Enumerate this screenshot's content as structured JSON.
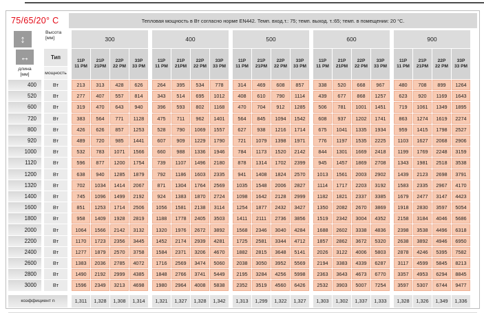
{
  "header": {
    "temp_label": "75/65/20° C",
    "title": "Тепловая мощность в Вт согласно норме EN442. Темп. вход.т.: 75; темп. выход. т.:65; темп. в помещении: 20 °С."
  },
  "colors": {
    "accent_red": "#e30613",
    "data_cell_bg": "#f8cab2",
    "data_cell_border": "#eeb094",
    "header_band_bg": "#d8d8d8",
    "icon_bg": "#9b9b9b"
  },
  "icons": {
    "height_icon": "up-down-arrows",
    "length_icon": "left-right-arrows"
  },
  "table": {
    "height_label": "Высота",
    "height_unit": "[мм]",
    "length_label": "длина",
    "length_unit": "[мм]",
    "type_label": "Тип",
    "power_label": "мощность",
    "unit": "Вт",
    "heights": [
      "300",
      "400",
      "500",
      "600",
      "900"
    ],
    "types": [
      {
        "line1": "11P",
        "line2": "11 PM"
      },
      {
        "line1": "21P",
        "line2": "21PM"
      },
      {
        "line1": "22P",
        "line2": "22 PM"
      },
      {
        "line1": "33P",
        "line2": "33 PM"
      }
    ],
    "rows": [
      {
        "len": "400",
        "v": [
          213,
          313,
          428,
          626,
          264,
          395,
          534,
          778,
          314,
          469,
          608,
          857,
          338,
          520,
          668,
          967,
          480,
          708,
          899,
          1264
        ]
      },
      {
        "len": "520",
        "v": [
          277,
          407,
          557,
          814,
          343,
          514,
          695,
          1012,
          408,
          610,
          790,
          1114,
          439,
          677,
          868,
          1257,
          623,
          920,
          1169,
          1643
        ]
      },
      {
        "len": "600",
        "v": [
          319,
          470,
          643,
          940,
          396,
          593,
          802,
          1168,
          470,
          704,
          912,
          1285,
          506,
          781,
          1001,
          1451,
          719,
          1061,
          1349,
          1895
        ]
      },
      {
        "len": "720",
        "v": [
          383,
          564,
          771,
          1128,
          475,
          711,
          962,
          1401,
          564,
          845,
          1094,
          1542,
          608,
          937,
          1202,
          1741,
          863,
          1274,
          1619,
          2274
        ]
      },
      {
        "len": "800",
        "v": [
          426,
          626,
          857,
          1253,
          528,
          790,
          1069,
          1557,
          627,
          938,
          1216,
          1714,
          675,
          1041,
          1335,
          1934,
          959,
          1415,
          1798,
          2527
        ]
      },
      {
        "len": "920",
        "v": [
          489,
          720,
          985,
          1441,
          607,
          909,
          1229,
          1790,
          721,
          1079,
          1398,
          1971,
          776,
          1197,
          1535,
          2225,
          1103,
          1627,
          2068,
          2906
        ]
      },
      {
        "len": "1000",
        "v": [
          532,
          783,
          1071,
          1566,
          660,
          988,
          1336,
          1946,
          784,
          1173,
          1520,
          2142,
          844,
          1301,
          1669,
          2418,
          1199,
          1769,
          2248,
          3159
        ]
      },
      {
        "len": "1120",
        "v": [
          596,
          877,
          1200,
          1754,
          739,
          1107,
          1496,
          2180,
          878,
          1314,
          1702,
          2399,
          945,
          1457,
          1869,
          2708,
          1343,
          1981,
          2518,
          3538
        ]
      },
      {
        "len": "1200",
        "v": [
          638,
          940,
          1285,
          1879,
          792,
          1186,
          1603,
          2335,
          941,
          1408,
          1824,
          2570,
          1013,
          1561,
          2003,
          2902,
          1439,
          2123,
          2698,
          3791
        ]
      },
      {
        "len": "1320",
        "v": [
          702,
          1034,
          1414,
          2067,
          871,
          1304,
          1764,
          2569,
          1035,
          1548,
          2006,
          2827,
          1114,
          1717,
          2203,
          3192,
          1583,
          2335,
          2967,
          4170
        ]
      },
      {
        "len": "1400",
        "v": [
          745,
          1096,
          1499,
          2192,
          924,
          1383,
          1870,
          2724,
          1098,
          1642,
          2128,
          2999,
          1182,
          1821,
          2337,
          3385,
          1679,
          2477,
          3147,
          4423
        ]
      },
      {
        "len": "1600",
        "v": [
          851,
          1253,
          1714,
          2506,
          1056,
          1581,
          2138,
          3114,
          1254,
          1877,
          2432,
          3427,
          1350,
          2082,
          2670,
          3869,
          1918,
          2830,
          3597,
          5054
        ]
      },
      {
        "len": "1800",
        "v": [
          958,
          1409,
          1928,
          2819,
          1188,
          1778,
          2405,
          3503,
          1411,
          2111,
          2736,
          3856,
          1519,
          2342,
          3004,
          4352,
          2158,
          3184,
          4046,
          5686
        ]
      },
      {
        "len": "2000",
        "v": [
          1064,
          1566,
          2142,
          3132,
          1320,
          1976,
          2672,
          3892,
          1568,
          2346,
          3040,
          4284,
          1688,
          2602,
          3338,
          4836,
          2398,
          3538,
          4496,
          6318
        ]
      },
      {
        "len": "2200",
        "v": [
          1170,
          1723,
          2356,
          3445,
          1452,
          2174,
          2939,
          4281,
          1725,
          2581,
          3344,
          4712,
          1857,
          2862,
          3672,
          5320,
          2638,
          3892,
          4946,
          6950
        ]
      },
      {
        "len": "2400",
        "v": [
          1277,
          1879,
          2570,
          3758,
          1584,
          2371,
          3206,
          4670,
          1882,
          2815,
          3648,
          5141,
          2026,
          3122,
          4006,
          5803,
          2878,
          4246,
          5395,
          7582
        ]
      },
      {
        "len": "2600",
        "v": [
          1383,
          2036,
          2785,
          4072,
          1716,
          2569,
          3474,
          5060,
          2038,
          3050,
          3952,
          5569,
          2194,
          3383,
          4339,
          6287,
          3117,
          4599,
          5845,
          8213
        ]
      },
      {
        "len": "2800",
        "v": [
          1490,
          2192,
          2999,
          4385,
          1848,
          2766,
          3741,
          5449,
          2195,
          3284,
          4256,
          5998,
          2363,
          3643,
          4673,
          6770,
          3357,
          4953,
          6294,
          8845
        ]
      },
      {
        "len": "3000",
        "v": [
          1596,
          2349,
          3213,
          4698,
          1980,
          2964,
          4008,
          5838,
          2352,
          3519,
          4560,
          6426,
          2532,
          3903,
          5007,
          7254,
          3597,
          5307,
          6744,
          9477
        ]
      }
    ],
    "coefficient_label": "коэффициент n",
    "coefficients": [
      "1,311",
      "1,328",
      "1,308",
      "1,314",
      "1,321",
      "1,327",
      "1,328",
      "1,342",
      "1,313",
      "1,299",
      "1,322",
      "1,327",
      "1,303",
      "1,302",
      "1,337",
      "1,333",
      "1,328",
      "1,326",
      "1,349",
      "1,336"
    ]
  }
}
